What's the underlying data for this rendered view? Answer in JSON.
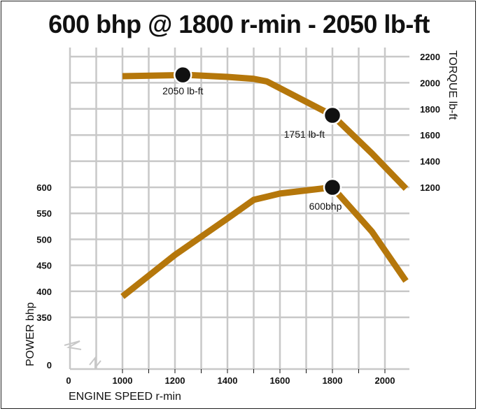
{
  "chart_data": {
    "type": "line",
    "title": "600 bhp @ 1800 r-min - 2050 lb-ft",
    "xlabel": "ENGINE SPEED r-min",
    "ylabel_left": "POWER bhp",
    "ylabel_right": "TORQUE lb-ft",
    "x_ticks": [
      "0",
      "1000",
      "1200",
      "1400",
      "1600",
      "1800",
      "2000"
    ],
    "left_ticks": [
      {
        "label": "0",
        "value": 0
      },
      {
        "label": "350",
        "value": 350
      },
      {
        "label": "400",
        "value": 400
      },
      {
        "label": "450",
        "value": 450
      },
      {
        "label": "500",
        "value": 500
      },
      {
        "label": "550",
        "value": 550
      },
      {
        "label": "600",
        "value": 600
      }
    ],
    "right_ticks": [
      {
        "label": "1200",
        "value": 1200
      },
      {
        "label": "1400",
        "value": 1400
      },
      {
        "label": "1600",
        "value": 1600
      },
      {
        "label": "1800",
        "value": 1800
      },
      {
        "label": "2000",
        "value": 2000
      },
      {
        "label": "2200",
        "value": 2200
      }
    ],
    "xlim": [
      800,
      2100
    ],
    "ylim_power": [
      250,
      640
    ],
    "ylim_torque": [
      1100,
      2250
    ],
    "axis_breaks": [
      "x",
      "y-left"
    ],
    "series": [
      {
        "axis": "right",
        "color": "#b5770b",
        "x": [
          1000,
          1250,
          1400,
          1500,
          1550,
          1800,
          1950,
          2080
        ],
        "y": [
          2050,
          2060,
          2045,
          2030,
          2010,
          1751,
          1460,
          1190
        ]
      },
      {
        "axis": "left",
        "color": "#b5770b",
        "x": [
          1000,
          1200,
          1400,
          1500,
          1600,
          1800,
          1950,
          2080
        ],
        "y": [
          390,
          470,
          540,
          576,
          588,
          600,
          515,
          420
        ]
      }
    ],
    "annotations": [
      {
        "text": "2050 lb-ft",
        "x": 1230,
        "y": 2060,
        "axis": "right"
      },
      {
        "text": "1751 lb-ft",
        "x": 1800,
        "y": 1751,
        "axis": "right"
      },
      {
        "text": "600bhp",
        "x": 1800,
        "y": 600,
        "axis": "left"
      }
    ],
    "grid": true
  }
}
